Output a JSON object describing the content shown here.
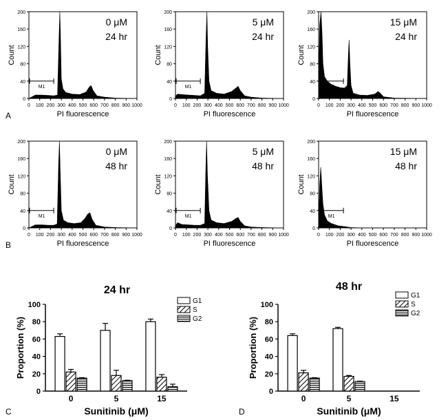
{
  "panel_labels": {
    "a": "A",
    "b": "B",
    "c": "C",
    "d": "D"
  },
  "histogram_common": {
    "ylabel": "Count",
    "xlabel": "PI fluorescence",
    "gate_label": "M1",
    "x_ticks": [
      "0",
      "100",
      "200",
      "300",
      "400",
      "500",
      "600",
      "700",
      "800",
      "900",
      "1000"
    ],
    "y_ticks": [
      "0",
      "40",
      "80",
      "120",
      "160",
      "200"
    ]
  },
  "bar_common": {
    "ylabel": "Proportion (%)",
    "xlabel": "Sunitinib (μM)",
    "categories": [
      "0",
      "5",
      "15"
    ],
    "y_ticks": [
      "0",
      "20",
      "40",
      "60",
      "80",
      "100"
    ],
    "legend": [
      "G1",
      "S",
      "G2"
    ]
  },
  "chart_data": [
    {
      "type": "area",
      "panel": "A",
      "dose": "0 μM",
      "time": "24 hr",
      "xlim": [
        0,
        1000
      ],
      "ylim": [
        0,
        200
      ],
      "gate": [
        0,
        230
      ],
      "series": [
        {
          "x": [
            0,
            60,
            120,
            180,
            230,
            265,
            278,
            286,
            292,
            300,
            315,
            340,
            400,
            470,
            530,
            555,
            575,
            595,
            630,
            700,
            800,
            1000
          ],
          "values": [
            0,
            8,
            8,
            7,
            6,
            8,
            130,
            200,
            150,
            45,
            22,
            14,
            10,
            9,
            15,
            25,
            30,
            18,
            6,
            3,
            1,
            0
          ]
        }
      ]
    },
    {
      "type": "area",
      "panel": "A",
      "dose": "5 μM",
      "time": "24 hr",
      "xlim": [
        0,
        1000
      ],
      "ylim": [
        0,
        200
      ],
      "gate": [
        0,
        230
      ],
      "series": [
        {
          "x": [
            0,
            20,
            60,
            120,
            180,
            230,
            270,
            283,
            291,
            298,
            310,
            330,
            380,
            450,
            520,
            560,
            580,
            600,
            640,
            700,
            800,
            1000
          ],
          "values": [
            5,
            10,
            9,
            8,
            7,
            6,
            12,
            140,
            200,
            120,
            40,
            18,
            12,
            10,
            16,
            24,
            28,
            18,
            6,
            3,
            1,
            0
          ]
        }
      ]
    },
    {
      "type": "area",
      "panel": "A",
      "dose": "15 μM",
      "time": "24 hr",
      "xlim": [
        0,
        1000
      ],
      "ylim": [
        0,
        200
      ],
      "gate": [
        0,
        230
      ],
      "series": [
        {
          "x": [
            0,
            10,
            22,
            32,
            40,
            55,
            80,
            120,
            160,
            200,
            240,
            265,
            275,
            282,
            290,
            300,
            320,
            380,
            450,
            520,
            550,
            570,
            600,
            700,
            1000
          ],
          "values": [
            30,
            170,
            200,
            150,
            80,
            50,
            40,
            32,
            28,
            25,
            24,
            30,
            100,
            135,
            80,
            30,
            12,
            8,
            7,
            10,
            16,
            12,
            4,
            1,
            0
          ]
        }
      ]
    },
    {
      "type": "area",
      "panel": "B",
      "dose": "0 μM",
      "time": "48 hr",
      "xlim": [
        0,
        1000
      ],
      "ylim": [
        0,
        200
      ],
      "gate": [
        0,
        230
      ],
      "series": [
        {
          "x": [
            0,
            60,
            120,
            180,
            230,
            262,
            275,
            283,
            290,
            300,
            320,
            360,
            420,
            480,
            520,
            545,
            565,
            585,
            620,
            700,
            800,
            1000
          ],
          "values": [
            0,
            7,
            7,
            6,
            6,
            9,
            150,
            200,
            130,
            40,
            18,
            12,
            10,
            12,
            22,
            32,
            35,
            20,
            6,
            2,
            1,
            0
          ]
        }
      ]
    },
    {
      "type": "area",
      "panel": "B",
      "dose": "5 μM",
      "time": "48 hr",
      "xlim": [
        0,
        1000
      ],
      "ylim": [
        0,
        200
      ],
      "gate": [
        0,
        230
      ],
      "series": [
        {
          "x": [
            0,
            20,
            60,
            120,
            180,
            230,
            270,
            280,
            288,
            296,
            310,
            330,
            380,
            450,
            520,
            560,
            580,
            600,
            640,
            700,
            800,
            1000
          ],
          "values": [
            5,
            12,
            8,
            7,
            6,
            6,
            10,
            130,
            200,
            120,
            40,
            18,
            12,
            10,
            15,
            22,
            24,
            15,
            5,
            2,
            1,
            0
          ]
        }
      ]
    },
    {
      "type": "area",
      "panel": "B",
      "dose": "15 μM",
      "time": "48 hr",
      "xlim": [
        0,
        1000
      ],
      "ylim": [
        0,
        200
      ],
      "gate": [
        0,
        230
      ],
      "series": [
        {
          "x": [
            0,
            10,
            20,
            30,
            40,
            55,
            80,
            120,
            180,
            240,
            300,
            400,
            1000
          ],
          "values": [
            5,
            100,
            140,
            95,
            55,
            30,
            16,
            10,
            5,
            3,
            1,
            0,
            0
          ]
        }
      ]
    },
    {
      "type": "bar",
      "panel": "C",
      "title": "24 hr",
      "categories": [
        "0",
        "5",
        "15"
      ],
      "ylim": [
        0,
        100
      ],
      "series": [
        {
          "name": "G1",
          "values": [
            63,
            70,
            80
          ],
          "errors": [
            3,
            8,
            3
          ]
        },
        {
          "name": "S",
          "values": [
            22,
            18,
            16
          ],
          "errors": [
            3,
            6,
            3
          ]
        },
        {
          "name": "G2",
          "values": [
            15,
            12,
            5
          ],
          "errors": [
            0.5,
            0.5,
            3
          ]
        }
      ]
    },
    {
      "type": "bar",
      "panel": "D",
      "title": "48 hr",
      "categories": [
        "0",
        "5",
        "15"
      ],
      "ylim": [
        0,
        100
      ],
      "series": [
        {
          "name": "G1",
          "values": [
            64,
            72,
            0
          ],
          "errors": [
            2,
            1.5,
            0
          ]
        },
        {
          "name": "S",
          "values": [
            21,
            17,
            0
          ],
          "errors": [
            3,
            1,
            0
          ]
        },
        {
          "name": "G2",
          "values": [
            15,
            11,
            0
          ],
          "errors": [
            0.5,
            0.5,
            0
          ]
        }
      ]
    }
  ]
}
